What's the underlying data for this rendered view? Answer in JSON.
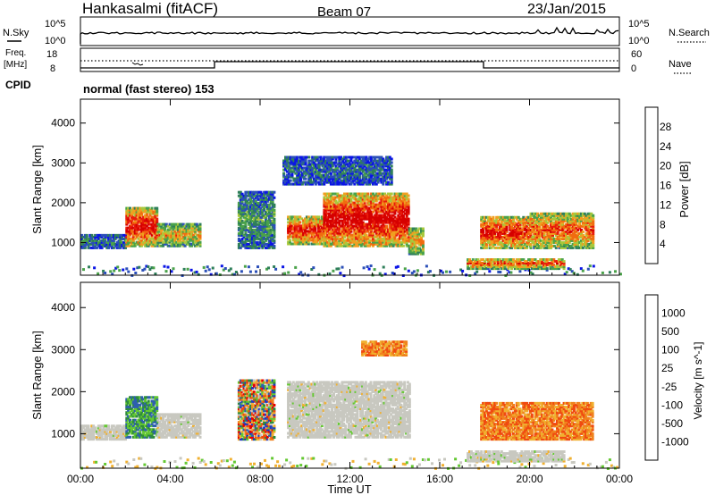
{
  "header": {
    "station": "Hankasalmi (fitACF)",
    "beam": "Beam 07",
    "date": "23/Jan/2015"
  },
  "strip": {
    "nsky_label": "N.Sky",
    "nsky_ticks": [
      "10^5",
      "10^0"
    ],
    "nsearch_label": "N.Search",
    "nsearch_ticks": [
      "10^5",
      "10^0"
    ],
    "freq_label": "Freq.",
    "freq_unit": "[MHz]",
    "freq_ticks": [
      "18",
      "8"
    ],
    "nave_label": "Nave",
    "nave_ticks": [
      "60",
      "0"
    ],
    "cpid_label": "CPID",
    "cpid_value": "normal (fast stereo) 153"
  },
  "colors": {
    "power": [
      "#0a14e6",
      "#2b4fb8",
      "#2f7f5a",
      "#4aa24a",
      "#a8c83c",
      "#f0a020",
      "#f06c10",
      "#e81c0c",
      "#d60000"
    ],
    "velocity": [
      "#e80000",
      "#f04a10",
      "#f0821e",
      "#f0b030",
      "#c8c8c0",
      "#64c832",
      "#2e8c3c",
      "#2e5fb0",
      "#2038c0"
    ]
  },
  "chart_data": [
    {
      "type": "heatmap",
      "name": "power-panel",
      "xlabel": "",
      "ylabel": "Slant Range [km]",
      "xlim": [
        0,
        24
      ],
      "ylim": [
        180,
        4600
      ],
      "x_tick_labels": [
        "00:00",
        "04:00",
        "08:00",
        "12:00",
        "16:00",
        "20:00",
        "00:00"
      ],
      "x_ticks": [
        0,
        4,
        8,
        12,
        16,
        20,
        24
      ],
      "y_ticks": [
        1000,
        2000,
        3000,
        4000
      ],
      "colorbar_label": "Power [dB]",
      "colorbar_ticks": [
        "4",
        "8",
        "12",
        "16",
        "20",
        "24",
        "28"
      ],
      "colorbar_range": [
        0,
        32
      ],
      "regions": [
        {
          "t": [
            0,
            2.0
          ],
          "r": [
            900,
            1250
          ],
          "level": 0.25
        },
        {
          "t": [
            2.0,
            3.4
          ],
          "r": [
            950,
            1900
          ],
          "level": 0.85
        },
        {
          "t": [
            3.4,
            5.3
          ],
          "r": [
            950,
            1500
          ],
          "level": 0.55
        },
        {
          "t": [
            7.0,
            8.6
          ],
          "r": [
            900,
            2300
          ],
          "level": 0.3
        },
        {
          "t": [
            9.2,
            10.8
          ],
          "r": [
            1000,
            1700
          ],
          "level": 0.8
        },
        {
          "t": [
            10.8,
            14.6
          ],
          "r": [
            950,
            2300
          ],
          "level": 0.9
        },
        {
          "t": [
            14.6,
            15.2
          ],
          "r": [
            750,
            1400
          ],
          "level": 0.6
        },
        {
          "t": [
            17.8,
            20.0
          ],
          "r": [
            900,
            1700
          ],
          "level": 0.8
        },
        {
          "t": [
            20.0,
            22.8
          ],
          "r": [
            900,
            1800
          ],
          "level": 0.7
        },
        {
          "t": [
            17.2,
            21.5
          ],
          "r": [
            380,
            650
          ],
          "level": 0.7
        },
        {
          "t": [
            9.0,
            13.8
          ],
          "r": [
            2500,
            3200
          ],
          "level": 0.2
        }
      ]
    },
    {
      "type": "heatmap",
      "name": "velocity-panel",
      "xlabel": "Time UT",
      "ylabel": "Slant Range [km]",
      "xlim": [
        0,
        24
      ],
      "ylim": [
        180,
        4600
      ],
      "x_tick_labels": [
        "00:00",
        "04:00",
        "08:00",
        "12:00",
        "16:00",
        "20:00",
        "00:00"
      ],
      "x_ticks": [
        0,
        4,
        8,
        12,
        16,
        20,
        24
      ],
      "y_ticks": [
        1000,
        2000,
        3000,
        4000
      ],
      "colorbar_label": "Velocity [m s^-1]",
      "colorbar_ticks": [
        "1000",
        "500",
        "100",
        "25",
        "-25",
        "-100",
        "-500",
        "-1000"
      ],
      "regions": [
        {
          "t": [
            0,
            2.0
          ],
          "r": [
            900,
            1250
          ],
          "vel": "ground"
        },
        {
          "t": [
            2.0,
            3.4
          ],
          "r": [
            950,
            1900
          ],
          "vel": "positive"
        },
        {
          "t": [
            3.4,
            5.3
          ],
          "r": [
            950,
            1500
          ],
          "vel": "ground"
        },
        {
          "t": [
            7.0,
            8.6
          ],
          "r": [
            900,
            2300
          ],
          "vel": "mixed"
        },
        {
          "t": [
            9.2,
            14.6
          ],
          "r": [
            950,
            2300
          ],
          "vel": "ground"
        },
        {
          "t": [
            17.8,
            22.8
          ],
          "r": [
            900,
            1800
          ],
          "vel": "negative"
        },
        {
          "t": [
            17.2,
            21.5
          ],
          "r": [
            380,
            650
          ],
          "vel": "ground"
        },
        {
          "t": [
            12.5,
            14.5
          ],
          "r": [
            2900,
            3250
          ],
          "vel": "negative"
        }
      ]
    }
  ]
}
